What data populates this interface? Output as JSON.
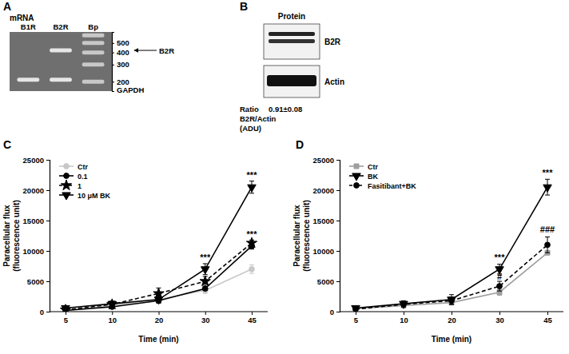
{
  "chart_data": [
    {
      "type": "gel",
      "panel": "A",
      "title": "mRNA",
      "categories": [
        "B1R",
        "B2R",
        "Bp"
      ],
      "bands": [
        [
          210
        ],
        [
          420,
          210
        ],
        [
          600,
          500,
          400,
          300,
          200
        ]
      ],
      "ylim": [
        160,
        650
      ],
      "yticks": [
        500,
        400,
        300,
        200
      ],
      "log": "y",
      "annotations": [
        {
          "text": "B2R",
          "y": 420
        },
        {
          "text": "GAPDH",
          "y": 165
        }
      ]
    },
    {
      "type": "blot",
      "panel": "B",
      "title": "Protein",
      "categories": [
        "B2R",
        "Actin"
      ],
      "annotations": [
        "Ratio",
        "0.91±0.08",
        "B2R/Actin",
        "(ADU)"
      ]
    },
    {
      "type": "line",
      "panel": "C",
      "xlabel": "Time (min)",
      "ylabel": "Paracellular flux\n(fluorescence unit)",
      "categories": [
        "5",
        "10",
        "20",
        "30",
        "45"
      ],
      "ylim": [
        0,
        25000
      ],
      "yticks": [
        0,
        5000,
        10000,
        15000,
        20000,
        25000
      ],
      "legend": "upper left",
      "series": [
        {
          "name": "Ctr",
          "color": "#c8c8c8",
          "marker": "circle",
          "line_style": "solid",
          "values": [
            200,
            1000,
            2000,
            3500,
            7000
          ],
          "errors": [
            150,
            300,
            400,
            500,
            700
          ]
        },
        {
          "name": "0.1",
          "color": "#000000",
          "marker": "circle",
          "line_style": "solid",
          "values": [
            200,
            800,
            1800,
            3800,
            10800
          ],
          "errors": [
            150,
            300,
            400,
            300,
            500
          ]
        },
        {
          "name": "1",
          "color": "#000000",
          "marker": "star",
          "line_style": "dashed",
          "values": [
            300,
            1200,
            3000,
            5000,
            11300
          ],
          "errors": [
            200,
            500,
            900,
            800,
            500
          ]
        },
        {
          "name": "10 μM BK",
          "color": "#000000",
          "marker": "triangle-down",
          "line_style": "solid",
          "values": [
            600,
            1300,
            2000,
            7000,
            20500
          ],
          "errors": [
            300,
            400,
            500,
            900,
            1000
          ]
        }
      ],
      "annotations": [
        {
          "text": "***",
          "x": "30",
          "y": 8400
        },
        {
          "text": "***",
          "x": "45",
          "y": 22000
        },
        {
          "text": "***",
          "x": "45",
          "y": 12300
        }
      ]
    },
    {
      "type": "line",
      "panel": "D",
      "xlabel": "Time (min)",
      "ylabel": "Paracellular flux\n(fluorescence unit)",
      "categories": [
        "5",
        "10",
        "20",
        "30",
        "45"
      ],
      "ylim": [
        0,
        25000
      ],
      "yticks": [
        0,
        5000,
        10000,
        15000,
        20000,
        25000
      ],
      "legend": "upper left",
      "series": [
        {
          "name": "Ctr",
          "color": "#9e9e9e",
          "marker": "square",
          "line_style": "solid",
          "values": [
            500,
            1000,
            1500,
            3200,
            9700
          ],
          "errors": [
            200,
            300,
            400,
            500,
            300
          ]
        },
        {
          "name": "BK",
          "color": "#000000",
          "marker": "triangle-down",
          "line_style": "solid",
          "values": [
            600,
            1300,
            2000,
            7000,
            20500
          ],
          "errors": [
            300,
            500,
            800,
            800,
            1300
          ]
        },
        {
          "name": "Fasitibant+BK",
          "color": "#000000",
          "marker": "circle",
          "line_style": "dashed",
          "values": [
            400,
            1200,
            1800,
            4200,
            11000
          ],
          "errors": [
            200,
            400,
            600,
            800,
            1300
          ]
        }
      ],
      "annotations": [
        {
          "text": "***",
          "x": "30",
          "y": 8400
        },
        {
          "text": "***",
          "x": "45",
          "y": 22400
        },
        {
          "text": "#",
          "x": "30",
          "y": 5300
        },
        {
          "text": "###",
          "x": "45",
          "y": 13000
        }
      ]
    }
  ]
}
